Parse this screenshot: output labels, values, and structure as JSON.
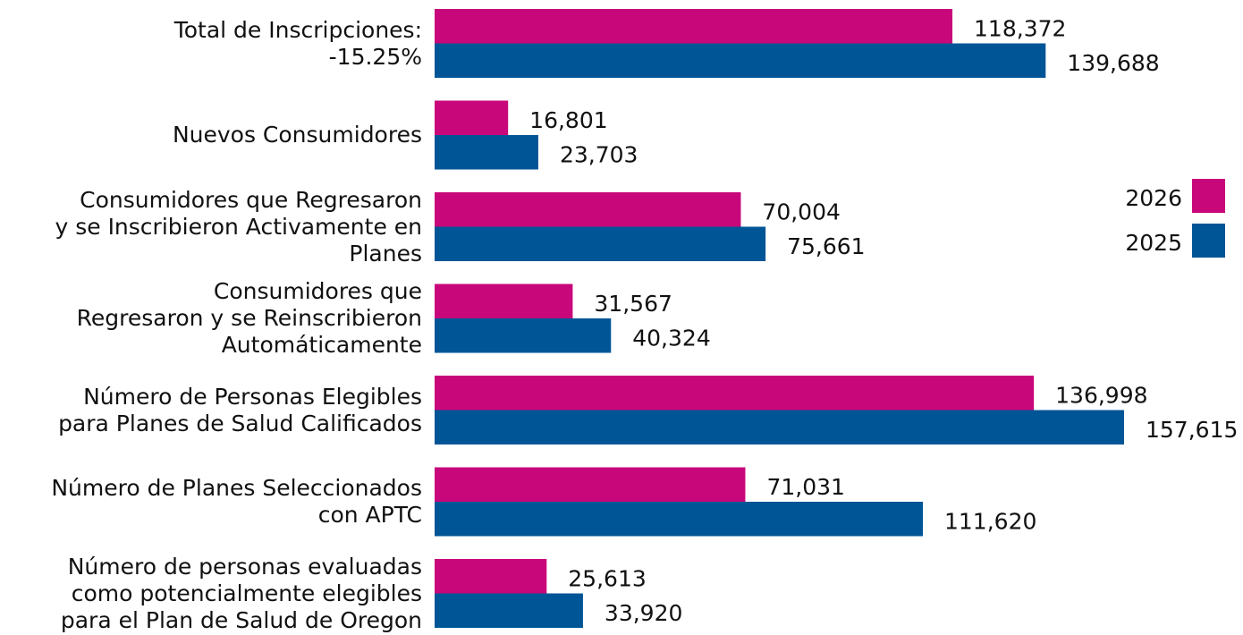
{
  "chart_data": {
    "type": "bar",
    "orientation": "horizontal",
    "categories": [
      "Total de Inscripciones:\n-15.25%",
      "Nuevos Consumidores",
      "Consumidores que Regresaron\ny se Inscribieron Activamente en\nPlanes",
      "Consumidores que\nRegresaron y se Reinscribieron\nAutomáticamente",
      "Número de Personas Elegibles\npara Planes de Salud Calificados",
      "Número de Planes Seleccionados\ncon APTC",
      "Número de personas evaluadas\ncomo potencialmente elegibles\npara el Plan de Salud de Oregon"
    ],
    "series": [
      {
        "name": "2026",
        "color": "#c8077a",
        "values": [
          118372,
          16801,
          70004,
          31567,
          136998,
          71031,
          25613
        ],
        "value_labels": [
          "118,372",
          "16,801",
          "70,004",
          "31,567",
          "136,998",
          "71,031",
          "25,613"
        ]
      },
      {
        "name": "2025",
        "color": "#005596",
        "values": [
          139688,
          23703,
          75661,
          40324,
          157615,
          111620,
          33920
        ],
        "value_labels": [
          "139,688",
          "23,703",
          "75,661",
          "40,324",
          "157,615",
          "111,620",
          "33,920"
        ]
      }
    ],
    "legend": "right"
  }
}
